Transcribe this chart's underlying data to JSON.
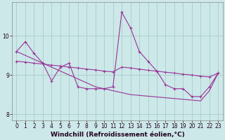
{
  "xlabel": "Windchill (Refroidissement éolien,°C)",
  "background_color": "#cce8e8",
  "grid_color": "#aacccc",
  "line_color": "#993399",
  "hours": [
    0,
    1,
    2,
    3,
    4,
    5,
    6,
    7,
    8,
    9,
    10,
    11,
    12,
    13,
    14,
    15,
    16,
    17,
    18,
    19,
    20,
    21,
    22,
    23
  ],
  "y_jagged": [
    9.6,
    9.85,
    9.55,
    9.3,
    8.85,
    9.2,
    9.3,
    8.7,
    8.65,
    8.65,
    8.65,
    8.7,
    10.6,
    10.2,
    9.6,
    9.35,
    9.1,
    8.75,
    8.65,
    8.65,
    8.45,
    8.45,
    8.7,
    9.05
  ],
  "y_smooth": [
    9.35,
    9.33,
    9.3,
    9.28,
    9.25,
    9.23,
    9.2,
    9.18,
    9.15,
    9.13,
    9.1,
    9.08,
    9.2,
    9.18,
    9.15,
    9.12,
    9.1,
    9.07,
    9.05,
    9.02,
    9.0,
    8.97,
    8.95,
    9.05
  ],
  "y_diagonal": [
    9.6,
    9.5,
    9.4,
    9.3,
    9.2,
    9.1,
    9.0,
    8.9,
    8.8,
    8.7,
    8.65,
    8.6,
    8.55,
    8.5,
    8.48,
    8.46,
    8.44,
    8.42,
    8.4,
    8.38,
    8.36,
    8.34,
    8.6,
    9.05
  ],
  "ylim": [
    7.85,
    10.85
  ],
  "xlim": [
    -0.5,
    23.5
  ],
  "yticks": [
    8,
    9,
    10
  ],
  "xticks": [
    0,
    1,
    2,
    3,
    4,
    5,
    6,
    7,
    8,
    9,
    10,
    11,
    12,
    13,
    14,
    15,
    16,
    17,
    18,
    19,
    20,
    21,
    22,
    23
  ],
  "tick_fontsize": 5.5,
  "xlabel_fontsize": 6.5
}
